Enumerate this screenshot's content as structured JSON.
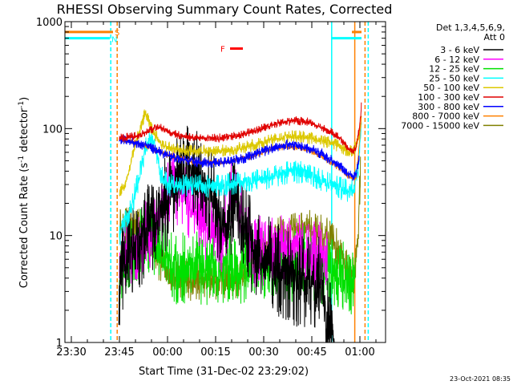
{
  "chart_data": {
    "type": "line",
    "title": "RHESSI Observing Summary Count Rates, Corrected",
    "xlabel": "Start Time (31-Dec-02 23:29:02)",
    "ylabel": "Corrected Count Rate (s⁻¹ detector⁻¹)",
    "ylabel_parts": {
      "main": "Corrected Count Rate (s",
      "sup1": "-1",
      "mid": " detector",
      "sup2": "-1",
      "end": ")"
    },
    "x_range_min": [
      -2,
      98
    ],
    "y_scale": "log",
    "ylim": [
      1,
      1000
    ],
    "x_ticks": [
      {
        "x": 0,
        "label": "23:30"
      },
      {
        "x": 15,
        "label": "23:45"
      },
      {
        "x": 30,
        "label": "00:00"
      },
      {
        "x": 45,
        "label": "00:15"
      },
      {
        "x": 60,
        "label": "00:30"
      },
      {
        "x": 75,
        "label": "00:45"
      },
      {
        "x": 90,
        "label": "01:00"
      }
    ],
    "y_ticks": [
      {
        "y": 1,
        "label": "1"
      },
      {
        "y": 10,
        "label": "10"
      },
      {
        "y": 100,
        "label": "100"
      },
      {
        "y": 1000,
        "label": "1000"
      }
    ],
    "legend": {
      "placement": "right",
      "header": [
        "Det 1,3,4,5,6,9,",
        "Att 0"
      ],
      "entries": [
        {
          "label": "3 - 6 keV",
          "color": "#000000"
        },
        {
          "label": "6 - 12 keV",
          "color": "#ff00ff"
        },
        {
          "label": "12 - 25 keV",
          "color": "#00e000"
        },
        {
          "label": "25 - 50 keV",
          "color": "#00ffff"
        },
        {
          "label": "50 - 100 keV",
          "color": "#dcc800"
        },
        {
          "label": "100 - 300 keV",
          "color": "#e00000"
        },
        {
          "label": "300 - 800 keV",
          "color": "#0000ff"
        },
        {
          "label": "800 - 7000 keV",
          "color": "#ff8000"
        },
        {
          "label": "7000 - 15000 keV",
          "color": "#808000"
        }
      ]
    },
    "flags": {
      "S": {
        "label": "S",
        "color": "#ff8000",
        "y": 800,
        "segments": [
          [
            -2,
            13
          ],
          [
            87.5,
            90.5
          ]
        ]
      },
      "N": {
        "label": "N",
        "color": "#00ffff",
        "y": 700,
        "segments": [
          [
            -2,
            12
          ],
          [
            81,
            90.5
          ]
        ]
      },
      "F": {
        "label": "F",
        "color": "#ff0000",
        "y": 560,
        "segments": [
          [
            49.5,
            53.5
          ]
        ]
      }
    },
    "vlines": [
      {
        "x": 12.3,
        "color": "#00ffff",
        "dash": true
      },
      {
        "x": 14.3,
        "color": "#ff8000",
        "dash": true
      },
      {
        "x": 81.2,
        "color": "#00ffff",
        "dash": false
      },
      {
        "x": 88.4,
        "color": "#ff8000",
        "dash": false
      },
      {
        "x": 91.6,
        "color": "#ff8000",
        "dash": true
      },
      {
        "x": 92.6,
        "color": "#00ffff",
        "dash": true
      }
    ],
    "series": [
      {
        "name": "3 - 6 keV",
        "color": "#000000",
        "noise": 0.9,
        "seed": 11,
        "x": [
          14.8,
          15.5,
          17,
          20,
          24,
          27,
          30,
          33,
          36,
          39,
          42,
          45,
          47,
          48.5,
          50,
          51.5,
          53,
          55,
          57,
          60,
          63,
          66,
          69,
          72,
          75,
          77,
          78.5,
          79.5,
          80.5,
          81,
          82
        ],
        "y": [
          2.5,
          5,
          6,
          8,
          11,
          15,
          22,
          32,
          38,
          34,
          28,
          20,
          13,
          11,
          16,
          26,
          17,
          10,
          7,
          6,
          5,
          4.5,
          4,
          3.5,
          3.5,
          3.8,
          3.2,
          1.6,
          1.3,
          1.6,
          1.0
        ]
      },
      {
        "name": "6 - 12 keV",
        "color": "#ff00ff",
        "noise": 0.7,
        "seed": 23,
        "x": [
          15,
          17,
          20,
          23,
          26,
          28,
          30,
          31.5,
          33,
          36,
          39,
          42,
          45,
          47,
          48.5,
          50,
          51.5,
          53,
          55,
          57,
          60,
          63,
          66,
          69,
          72,
          75,
          78,
          80
        ],
        "y": [
          6,
          7,
          8,
          9.5,
          12,
          18,
          28,
          32,
          27,
          22,
          17,
          13,
          10,
          9,
          12,
          24,
          26,
          16,
          9,
          7,
          7,
          7.5,
          8,
          7.5,
          7,
          6.5,
          6,
          5.5
        ]
      },
      {
        "name": "12 - 25 keV",
        "color": "#00e000",
        "noise": 0.7,
        "seed": 37,
        "x": [
          15,
          17,
          20,
          23,
          26,
          29,
          32,
          36,
          40,
          45,
          50,
          55,
          60,
          63,
          66,
          69,
          72,
          75,
          78,
          81,
          84,
          86,
          87.5,
          88.5
        ],
        "y": [
          4.5,
          6,
          8,
          9.5,
          8,
          6,
          5,
          5,
          5,
          5,
          5,
          5,
          5,
          6,
          5.5,
          5,
          5.5,
          5.5,
          5,
          5,
          4.5,
          3.5,
          3.2,
          5
        ]
      },
      {
        "name": "25 - 50 keV",
        "color": "#00ffff",
        "noise": 0.22,
        "seed": 41,
        "x": [
          15,
          17,
          19,
          21,
          23,
          25,
          26,
          27,
          28,
          29,
          30,
          33,
          36,
          40,
          45,
          50,
          55,
          60,
          63,
          66,
          69,
          71,
          74,
          77,
          80,
          83,
          86,
          88,
          89.5,
          90.5
        ],
        "y": [
          10,
          14,
          20,
          33,
          65,
          85,
          70,
          50,
          38,
          33,
          30,
          29,
          29,
          29,
          29,
          30,
          32,
          34,
          36,
          38,
          39,
          39,
          37,
          34,
          31,
          29,
          26,
          27,
          40,
          120
        ]
      },
      {
        "name": "50 - 100 keV",
        "color": "#dcc800",
        "noise": 0.12,
        "seed": 53,
        "x": [
          15,
          16,
          17.5,
          19,
          21,
          23,
          25,
          27,
          28,
          29,
          30,
          33,
          36,
          40,
          45,
          50,
          55,
          60,
          63,
          66,
          69,
          72,
          75,
          78,
          81,
          84,
          86,
          88,
          89.5,
          90.5
        ],
        "y": [
          25,
          28,
          35,
          55,
          90,
          140,
          100,
          80,
          72,
          68,
          66,
          64,
          62,
          61,
          61,
          63,
          68,
          74,
          79,
          82,
          84,
          84,
          81,
          77,
          73,
          68,
          62,
          62,
          80,
          120
        ]
      },
      {
        "name": "100 - 300 keV",
        "color": "#e00000",
        "noise": 0.08,
        "seed": 67,
        "x": [
          15,
          17,
          20,
          23,
          25,
          27,
          29,
          31,
          34,
          37,
          40,
          43,
          46,
          49,
          52,
          55,
          58,
          61,
          64,
          67,
          70,
          72,
          75,
          78,
          81,
          84,
          86,
          87.5,
          88.8,
          89.8,
          90.5
        ],
        "y": [
          82,
          83,
          85,
          90,
          98,
          104,
          100,
          92,
          86,
          83,
          81,
          81,
          82,
          84,
          87,
          92,
          98,
          105,
          111,
          116,
          118,
          117,
          112,
          103,
          92,
          80,
          68,
          62,
          65,
          100,
          170
        ]
      },
      {
        "name": "300 - 800 keV",
        "color": "#0000ff",
        "noise": 0.1,
        "seed": 79,
        "x": [
          15,
          17,
          20,
          23,
          25,
          28,
          31,
          34,
          37,
          40,
          43,
          46,
          49,
          52,
          55,
          58,
          61,
          64,
          67,
          70,
          72,
          75,
          78,
          81,
          84,
          86,
          87.5,
          88.8,
          89.8
        ],
        "y": [
          80,
          78,
          74,
          70,
          66,
          60,
          55,
          52,
          50,
          48,
          48,
          48,
          49,
          51,
          54,
          58,
          63,
          67,
          70,
          70,
          68,
          64,
          58,
          51,
          45,
          39,
          36,
          36,
          55
        ]
      },
      {
        "name": "800 - 7000 keV",
        "color": "#ff8000",
        "noise": 0.06,
        "seed": 83,
        "x": [
          15,
          17,
          20,
          23,
          25,
          28,
          31,
          34,
          37,
          40,
          43,
          46,
          49,
          52,
          55,
          58,
          61,
          64,
          67,
          70,
          72,
          75,
          78,
          81,
          84,
          86,
          87.5,
          88.8,
          89.8,
          90.5
        ],
        "y": [
          80,
          78,
          74,
          70,
          66,
          60,
          55,
          52,
          50,
          48,
          48,
          48,
          49,
          51,
          54,
          58,
          63,
          66,
          68,
          67,
          65,
          61,
          55,
          48,
          42,
          37,
          34,
          34,
          70,
          140
        ]
      },
      {
        "name": "7000 - 15000 keV",
        "color": "#808000",
        "noise": 0.4,
        "seed": 97,
        "x": [
          15,
          16,
          19,
          22,
          25,
          28,
          31,
          34,
          37,
          40,
          45,
          50,
          53,
          56,
          59,
          62,
          64,
          67,
          70,
          73,
          76,
          79,
          82,
          85,
          87,
          88.5,
          89.5,
          90.2
        ],
        "y": [
          13,
          12,
          12,
          11,
          8,
          5,
          4,
          4,
          3.8,
          3.8,
          3.8,
          4,
          4.2,
          5,
          6.5,
          8.5,
          9.5,
          10,
          11,
          11.5,
          11,
          10,
          8.5,
          6,
          4.5,
          4.2,
          12,
          40
        ]
      }
    ]
  },
  "footer": {
    "timestamp": "23-Oct-2021 08:35"
  }
}
